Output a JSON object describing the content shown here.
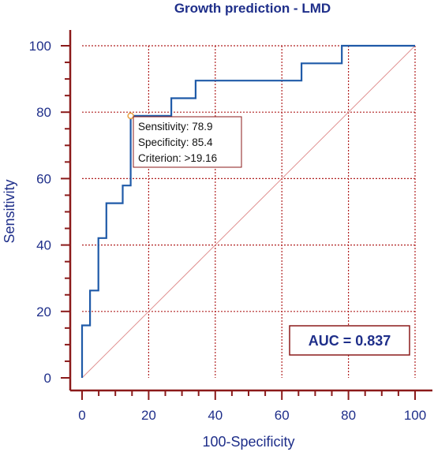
{
  "chart_data": {
    "type": "line",
    "title": "Growth prediction - LMD",
    "xlabel": "100-Specificity",
    "ylabel": "Sensitivity",
    "xlim": [
      0,
      100
    ],
    "ylim": [
      0,
      100
    ],
    "xticks": [
      0,
      20,
      40,
      60,
      80,
      100
    ],
    "yticks": [
      0,
      20,
      40,
      60,
      80,
      100
    ],
    "grid": true,
    "series": [
      {
        "color": "#1f5aa8",
        "x": [
          0,
          0,
          2.4,
          2.4,
          4.9,
          4.9,
          7.3,
          7.3,
          12.2,
          12.2,
          14.6,
          14.6,
          26.8,
          26.8,
          34.1,
          34.1,
          65.9,
          65.9,
          78.0,
          78.0,
          100
        ],
        "y": [
          0,
          15.8,
          15.8,
          26.3,
          26.3,
          42.1,
          42.1,
          52.6,
          52.6,
          57.9,
          57.9,
          78.9,
          78.9,
          84.2,
          84.2,
          89.5,
          89.5,
          94.7,
          94.7,
          100,
          100
        ]
      }
    ],
    "reference_line": {
      "x": [
        0,
        100
      ],
      "y": [
        0,
        100
      ],
      "color": "#e09090"
    },
    "operating_point": {
      "x": 14.6,
      "y": 78.9,
      "lines": [
        "Sensitivity: 78.9",
        "Specificity: 85.4",
        "Criterion: >19.16"
      ]
    },
    "annotation": "AUC = 0.837",
    "colors": {
      "axis": "#8b1a1a",
      "text": "#1f2f8a",
      "grid": "#b02020",
      "curve": "#1f5aa8"
    }
  }
}
